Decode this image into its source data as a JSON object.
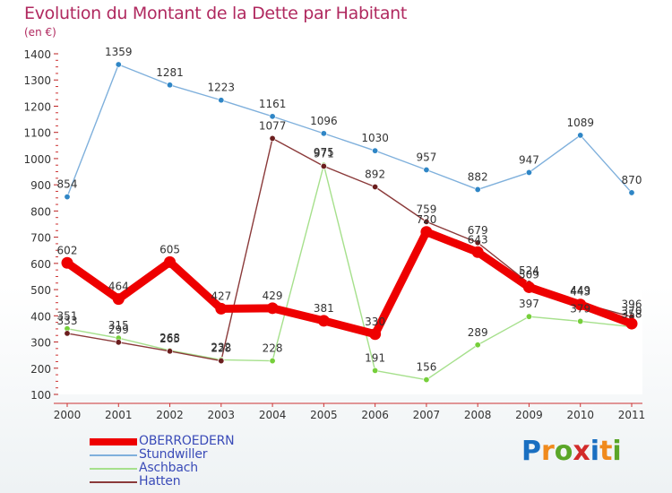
{
  "title": "Evolution du Montant de la Dette par Habitant",
  "unit": "(en €)",
  "logo": {
    "text": "Proxiti",
    "colors": [
      "#1a6fc1",
      "#f08a1c",
      "#5aa628",
      "#d22a2a",
      "#1a6fc1",
      "#f08a1c",
      "#5aa628"
    ]
  },
  "chart_data": {
    "type": "line",
    "title": "Evolution du Montant de la Dette par Habitant",
    "ylabel": "(en €)",
    "ylim": [
      100,
      1400
    ],
    "yticks": [
      "100",
      "200",
      "300",
      "400",
      "500",
      "600",
      "700",
      "800",
      "900",
      "1000",
      "1100",
      "1200",
      "1300",
      "1400"
    ],
    "categories": [
      "2000",
      "2001",
      "2002",
      "2003",
      "2004",
      "2005",
      "2006",
      "2007",
      "2008",
      "2009",
      "2010",
      "2011"
    ],
    "legend_position": "bottom-left",
    "series": [
      {
        "name": "OBERROEDERN",
        "color": "#ee0000",
        "marker": "#ee0000",
        "width": "thick",
        "values": [
          602,
          464,
          605,
          427,
          429,
          381,
          330,
          720,
          643,
          509,
          443,
          370
        ],
        "labels": [
          "602",
          "464",
          "605",
          "427",
          "429",
          "381",
          "330",
          "720",
          "643",
          "509",
          "443",
          "370"
        ]
      },
      {
        "name": "Stundwiller",
        "color": "#7fb0dc",
        "marker": "#2f86c6",
        "width": "thin",
        "values": [
          854,
          1359,
          1281,
          1223,
          1161,
          1096,
          1030,
          957,
          882,
          947,
          1089,
          870
        ],
        "labels": [
          "854",
          "1359",
          "1281",
          "1223",
          "1161",
          "1096",
          "1030",
          "957",
          "882",
          "947",
          "1089",
          "870"
        ]
      },
      {
        "name": "Aschbach",
        "color": "#a6e08c",
        "marker": "#76cf3a",
        "width": "thin",
        "values": [
          351,
          315,
          268,
          232,
          228,
          975,
          191,
          156,
          289,
          397,
          379,
          358
        ],
        "labels": [
          "351",
          "315",
          "268",
          "232",
          "228",
          "975",
          "191",
          "156",
          "289",
          "397",
          "379",
          "358"
        ]
      },
      {
        "name": "Hatten",
        "color": "#8b3a3a",
        "marker": "#6b1e1e",
        "width": "thin",
        "values": [
          333,
          299,
          265,
          228,
          1077,
          971,
          892,
          759,
          679,
          524,
          449,
          396
        ],
        "labels": [
          "333",
          "299",
          "265",
          "228",
          "1077",
          "971",
          "892",
          "759",
          "679",
          "524",
          "449",
          "396"
        ]
      }
    ]
  }
}
